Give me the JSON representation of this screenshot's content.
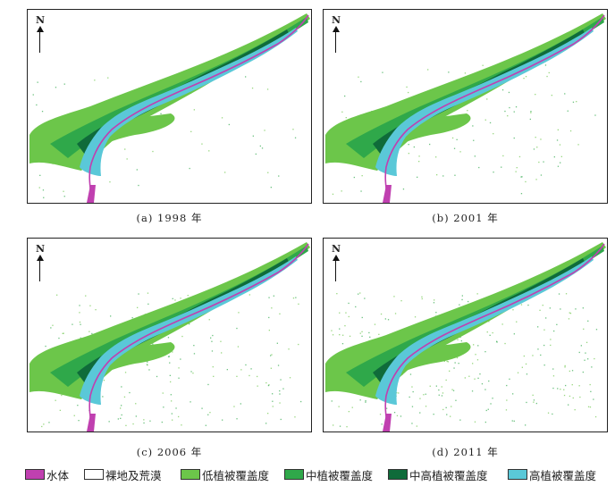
{
  "panels": [
    {
      "caption": "(a) 1998 年",
      "north": "N"
    },
    {
      "caption": "(b) 2001 年",
      "north": "N"
    },
    {
      "caption": "(c) 2006 年",
      "north": "N"
    },
    {
      "caption": "(d) 2011 年",
      "north": "N"
    }
  ],
  "legend": [
    {
      "label": "水体",
      "color": "#c040b0"
    },
    {
      "label": "裸地及荒漠",
      "color": "#ffffff"
    },
    {
      "label": "低植被覆盖度",
      "color": "#6cc64a"
    },
    {
      "label": "中植被覆盖度",
      "color": "#2fa84a"
    },
    {
      "label": "中高植被覆盖度",
      "color": "#0f6b3a"
    },
    {
      "label": "高植被覆盖度",
      "color": "#5ac8d8"
    }
  ]
}
